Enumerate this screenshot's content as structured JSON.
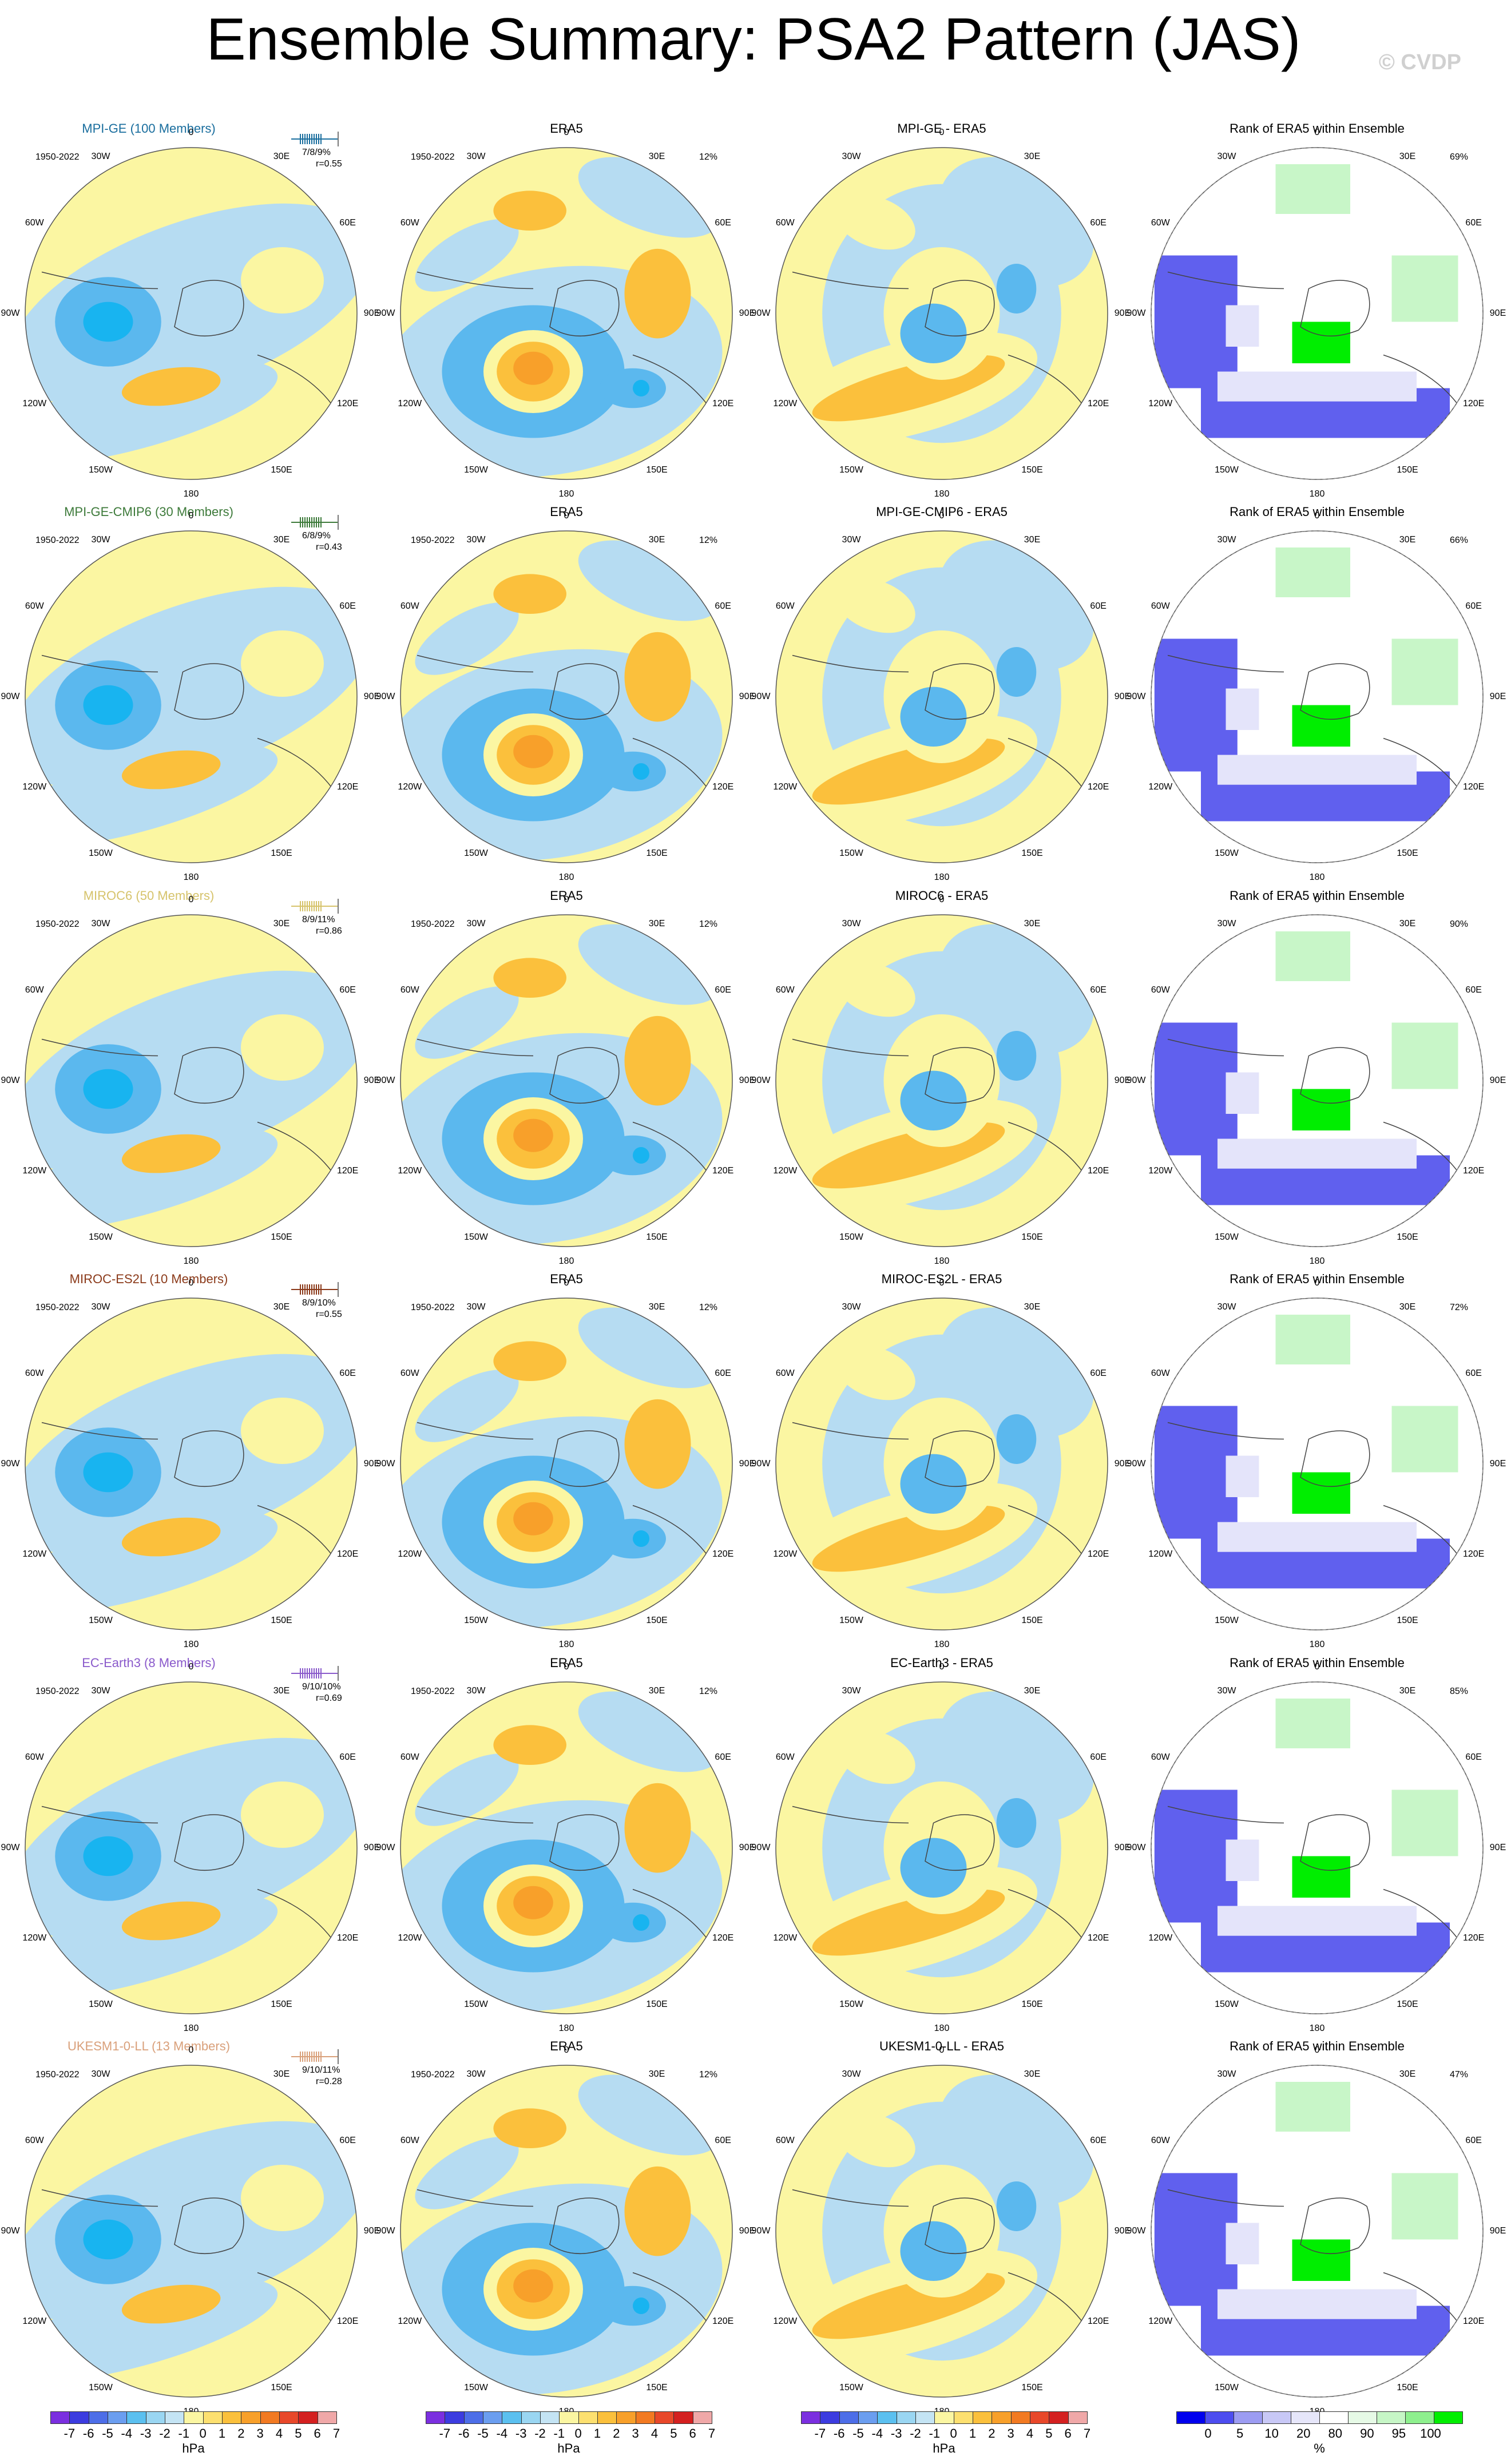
{
  "title": "Ensemble Summary: PSA2 Pattern (JAS)",
  "copyright": "© CVDP",
  "period": "1950-2022",
  "lon_labels": [
    "0",
    "30E",
    "60E",
    "90E",
    "120E",
    "150E",
    "180",
    "150W",
    "120W",
    "90W",
    "60W",
    "30W"
  ],
  "obs_title": "ERA5",
  "obs_pct": "12%",
  "rank_title": "Rank of ERA5 within Ensemble",
  "rows": [
    {
      "model": "MPI-GE (100 Members)",
      "color": "#1a6e9e",
      "stats": "7/8/9%",
      "r": "r=0.55",
      "diff": "MPI-GE - ERA5",
      "rank_pct": "69%"
    },
    {
      "model": "MPI-GE-CMIP6 (30 Members)",
      "color": "#3d7a3a",
      "stats": "6/8/9%",
      "r": "r=0.43",
      "diff": "MPI-GE-CMIP6 - ERA5",
      "rank_pct": "66%"
    },
    {
      "model": "MIROC6 (50 Members)",
      "color": "#d6c36b",
      "stats": "8/9/11%",
      "r": "r=0.86",
      "diff": "MIROC6 - ERA5",
      "rank_pct": "90%"
    },
    {
      "model": "MIROC-ES2L (10 Members)",
      "color": "#8b3a1a",
      "stats": "8/9/10%",
      "r": "r=0.55",
      "diff": "MIROC-ES2L - ERA5",
      "rank_pct": "72%"
    },
    {
      "model": "EC-Earth3 (8 Members)",
      "color": "#8a5acb",
      "stats": "9/10/10%",
      "r": "r=0.69",
      "diff": "EC-Earth3 - ERA5",
      "rank_pct": "85%"
    },
    {
      "model": "UKESM1-0-LL (13 Members)",
      "color": "#d9a07a",
      "stats": "9/10/11%",
      "r": "r=0.28",
      "diff": "UKESM1-0-LL - ERA5",
      "rank_pct": "47%"
    }
  ],
  "hpa_colorbar": {
    "colors": [
      "#7b2fe0",
      "#3c3ce0",
      "#4d6ee8",
      "#6b9ef0",
      "#5bc0f0",
      "#9ad6f2",
      "#c4e4f4",
      "#fbf6a2",
      "#fde070",
      "#fbc03c",
      "#f8a02a",
      "#f27a22",
      "#e8482a",
      "#d42020",
      "#f0a8a8"
    ],
    "ticks": [
      "-7",
      "-6",
      "-5",
      "-4",
      "-3",
      "-2",
      "-1",
      "0",
      "1",
      "2",
      "3",
      "4",
      "5",
      "6",
      "7"
    ],
    "unit": "hPa"
  },
  "rank_colorbar": {
    "colors": [
      "#0000ee",
      "#4d4df0",
      "#9c9cf2",
      "#c8c8f6",
      "#e6e6fa",
      "#ffffff",
      "#e6fae6",
      "#c6f6c6",
      "#8ef08e",
      "#00ee00"
    ],
    "ticks": [
      "0",
      "5",
      "10",
      "20",
      "80",
      "90",
      "95",
      "100"
    ],
    "unit": "%"
  }
}
